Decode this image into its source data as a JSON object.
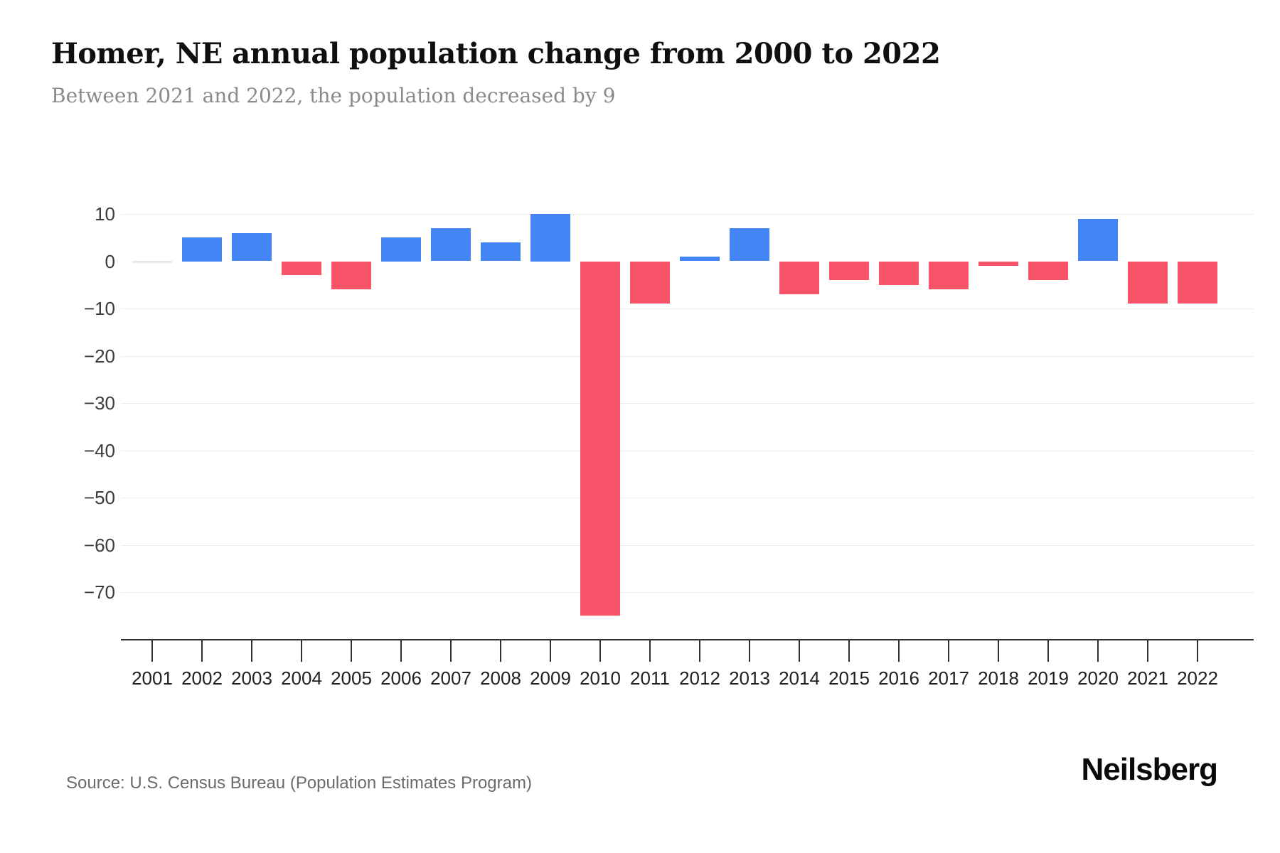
{
  "header": {
    "title": "Homer, NE annual population change from 2000 to 2022",
    "subtitle": "Between 2021 and 2022, the population decreased by 9"
  },
  "footer": {
    "source": "Source: U.S. Census Bureau (Population Estimates Program)",
    "brand": "Neilsberg"
  },
  "colors": {
    "positive_bar": "#4385f4",
    "negative_bar": "#f9536a",
    "zero_bar": "#e9e9e9",
    "gridline": "#ececec",
    "axis": "#2f2f2f",
    "title_text": "#0f0f0f",
    "subtitle_text": "#8a8a8a",
    "source_text": "#6b6b6b"
  },
  "chart_data": {
    "type": "bar",
    "title": "Homer, NE annual population change from 2000 to 2022",
    "subtitle": "Between 2021 and 2022, the population decreased by 9",
    "xlabel": "",
    "ylabel": "",
    "categories": [
      2001,
      2002,
      2003,
      2004,
      2005,
      2006,
      2007,
      2008,
      2009,
      2010,
      2011,
      2012,
      2013,
      2014,
      2015,
      2016,
      2017,
      2018,
      2019,
      2020,
      2021,
      2022
    ],
    "values": [
      0,
      5,
      6,
      -3,
      -6,
      5,
      7,
      4,
      10,
      -75,
      -9,
      1,
      7,
      -7,
      -4,
      -5,
      -6,
      -1,
      -4,
      9,
      -9,
      -9
    ],
    "yticks": [
      10,
      0,
      -10,
      -20,
      -30,
      -40,
      -50,
      -60,
      -70
    ],
    "ylim": [
      -80,
      12
    ],
    "grid": true,
    "legend": false,
    "positive_color": "#4385f4",
    "negative_color": "#f9536a"
  }
}
